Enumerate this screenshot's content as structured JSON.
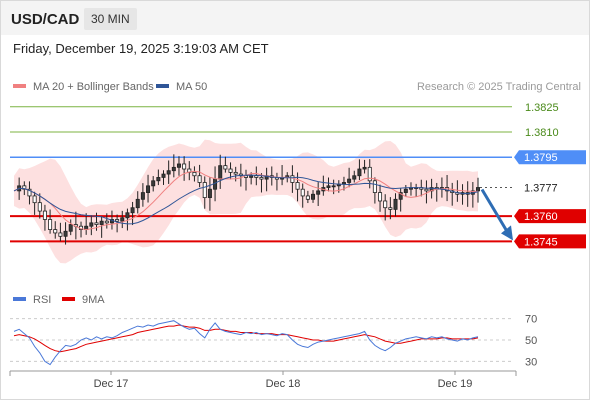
{
  "header": {
    "symbol": "USD/CAD",
    "timeframe": "30 MIN",
    "datetime": "Friday, December 19, 2025 3:19:03 AM CET"
  },
  "colors": {
    "up_candle": "#3a3a3a",
    "down_candle": "#ffffff",
    "candle_outline": "#222222",
    "ma20": "#f08080",
    "bollinger_fill": "#fde0e0",
    "ma50": "#2f5597",
    "target_line": "#7cb342",
    "target_text": "#4a8a1a",
    "pivot_line": "#4f8ef7",
    "support_line": "#e00000",
    "rsi": "#4a78d8",
    "rsi_ma": "#e00000",
    "arrow": "#2e6db4"
  },
  "chart_data": [
    {
      "type": "candlestick",
      "legend": [
        {
          "label": "MA 20 + Bollinger Bands",
          "color": "#f08080"
        },
        {
          "label": "MA 50",
          "color": "#2f5597"
        }
      ],
      "watermark": "Research © 2025 Trading Central",
      "x_ticks": [
        "Dec 17",
        "Dec 18",
        "Dec 19"
      ],
      "y_range": [
        1.3725,
        1.3832
      ],
      "current_price": 1.3777,
      "levels": [
        {
          "label": "1.3825",
          "value": 1.3825,
          "kind": "target"
        },
        {
          "label": "1.3810",
          "value": 1.381,
          "kind": "target"
        },
        {
          "label": "1.3795",
          "value": 1.3795,
          "kind": "pivot"
        },
        {
          "label": "1.3777",
          "value": 1.3777,
          "kind": "last"
        },
        {
          "label": "1.3760",
          "value": 1.376,
          "kind": "support"
        },
        {
          "label": "1.3745",
          "value": 1.3745,
          "kind": "support"
        }
      ],
      "forecast_arrow": {
        "from": 1.3777,
        "to": 1.3745
      },
      "close_path": [
        1.3775,
        1.3778,
        1.3776,
        1.3772,
        1.3768,
        1.3763,
        1.3758,
        1.3752,
        1.375,
        1.3748,
        1.3751,
        1.3755,
        1.3754,
        1.3752,
        1.3754,
        1.3756,
        1.3755,
        1.3757,
        1.3756,
        1.3758,
        1.3757,
        1.3759,
        1.3762,
        1.3765,
        1.377,
        1.3774,
        1.3778,
        1.3781,
        1.3783,
        1.3785,
        1.3787,
        1.3789,
        1.3791,
        1.3788,
        1.3786,
        1.3784,
        1.378,
        1.3771,
        1.3776,
        1.3782,
        1.379,
        1.3788,
        1.3786,
        1.3785,
        1.3784,
        1.3783,
        1.3784,
        1.3783,
        1.3782,
        1.3784,
        1.3783,
        1.3782,
        1.3783,
        1.3784,
        1.378,
        1.3776,
        1.3772,
        1.377,
        1.3773,
        1.3775,
        1.3777,
        1.3778,
        1.3778,
        1.3779,
        1.378,
        1.3782,
        1.3784,
        1.3788,
        1.3789,
        1.3781,
        1.3774,
        1.3769,
        1.3765,
        1.3764,
        1.377,
        1.3774,
        1.3776,
        1.3777,
        1.3777,
        1.3776,
        1.3775,
        1.3777,
        1.3776,
        1.3777,
        1.3775,
        1.3774,
        1.3773,
        1.3774,
        1.3773,
        1.3775,
        1.3777
      ]
    },
    {
      "type": "line",
      "legend": [
        {
          "label": "RSI",
          "color": "#4a78d8"
        },
        {
          "label": "9MA",
          "color": "#e00000"
        }
      ],
      "y_ticks": [
        "70",
        "50",
        "30"
      ],
      "y_range": [
        22,
        78
      ],
      "guides": [
        70,
        50,
        30
      ],
      "rsi": [
        58,
        60,
        56,
        52,
        44,
        38,
        30,
        27,
        34,
        40,
        45,
        44,
        46,
        50,
        52,
        50,
        53,
        51,
        53,
        52,
        54,
        57,
        59,
        61,
        63,
        62,
        64,
        63,
        65,
        66,
        67,
        68,
        65,
        62,
        60,
        61,
        56,
        52,
        60,
        66,
        60,
        58,
        57,
        56,
        55,
        57,
        56,
        57,
        55,
        56,
        55,
        54,
        56,
        55,
        50,
        46,
        44,
        43,
        46,
        48,
        49,
        50,
        51,
        52,
        53,
        54,
        55,
        56,
        58,
        50,
        45,
        42,
        40,
        43,
        47,
        49,
        51,
        52,
        53,
        52,
        51,
        53,
        52,
        53,
        51,
        50,
        49,
        51,
        50,
        52,
        53
      ],
      "rsi_ma": [
        54,
        55,
        54,
        53,
        51,
        48,
        45,
        42,
        40,
        39,
        40,
        41,
        42,
        44,
        46,
        47,
        48,
        49,
        50,
        51,
        52,
        53,
        54,
        55,
        57,
        58,
        59,
        60,
        61,
        62,
        63,
        63,
        64,
        63,
        62,
        62,
        61,
        59,
        59,
        60,
        60,
        59,
        58,
        58,
        57,
        57,
        57,
        56,
        56,
        56,
        56,
        55,
        55,
        55,
        54,
        53,
        52,
        51,
        50,
        50,
        49,
        49,
        49,
        50,
        51,
        52,
        53,
        54,
        55,
        54,
        53,
        51,
        49,
        48,
        47,
        47,
        48,
        49,
        50,
        51,
        51,
        51,
        51,
        52,
        52,
        51,
        51,
        51,
        51,
        51,
        52
      ]
    }
  ]
}
